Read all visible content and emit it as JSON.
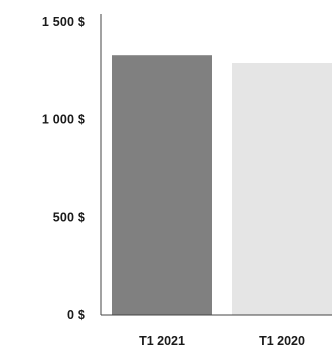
{
  "chart_data": {
    "type": "bar",
    "categories": [
      "T1 2021",
      "T1 2020"
    ],
    "values": [
      1330,
      1290
    ],
    "colors": [
      "#808080",
      "#e5e5e5"
    ],
    "ylim": [
      0,
      1500
    ],
    "yticks": [
      0,
      500,
      1000,
      1500
    ],
    "ytick_labels": [
      "0 $",
      "500 $",
      "1 000 $",
      "1 500 $"
    ],
    "grid": false,
    "title": "",
    "xlabel": "",
    "ylabel": ""
  }
}
